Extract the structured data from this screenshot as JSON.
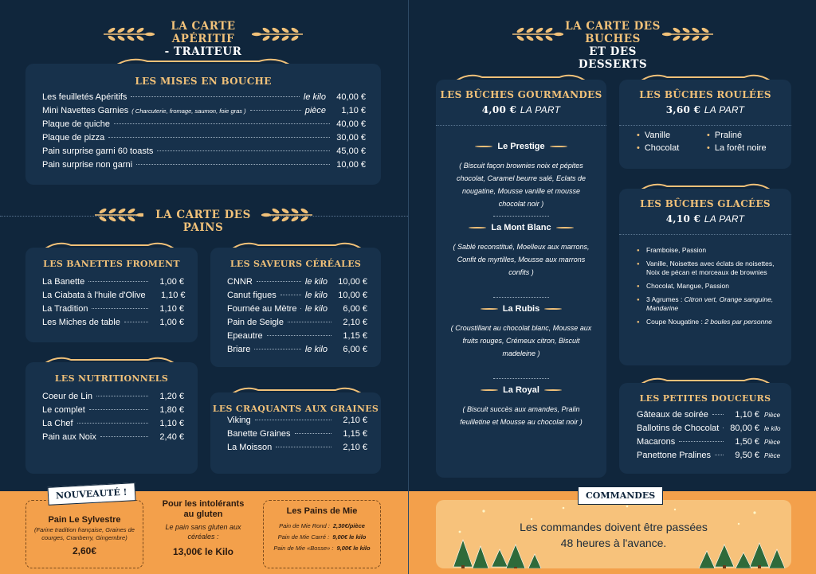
{
  "left": {
    "header": {
      "line1": "LA CARTE APÉRITIF",
      "line2": "- TRAITEUR"
    },
    "mises": {
      "title": "LES MISES EN BOUCHE",
      "rows": [
        {
          "name": "Les feuilletés Apéritifs",
          "note": "",
          "unit": "le kilo",
          "price": "40,00 €"
        },
        {
          "name": "Mini Navettes Garnies",
          "note": "( Charcuterie, fromage, saumon, foie gras )",
          "unit": "pièce",
          "price": "1,10 €"
        },
        {
          "name": "Plaque de quiche",
          "note": "",
          "unit": "",
          "price": "40,00 €"
        },
        {
          "name": "Plaque de pizza",
          "note": "",
          "unit": "",
          "price": "30,00 €"
        },
        {
          "name": "Pain surprise garni 60 toasts",
          "note": "",
          "unit": "",
          "price": "45,00 €"
        },
        {
          "name": "Pain surprise non garni",
          "note": "",
          "unit": "",
          "price": "10,00 €"
        }
      ]
    },
    "pains_header": "LA CARTE DES PAINS",
    "banettes": {
      "title": "LES BANETTES FROMENT",
      "rows": [
        {
          "name": "La Banette",
          "unit": "",
          "price": "1,00 €"
        },
        {
          "name": "La Ciabata à l'huile d'Olive",
          "unit": "",
          "price": "1,10 €"
        },
        {
          "name": "La Tradition",
          "unit": "",
          "price": "1,10 €"
        },
        {
          "name": "Les Miches de table",
          "unit": "",
          "price": "1,00 €"
        }
      ]
    },
    "saveurs": {
      "title": "LES SAVEURS CÉRÉALES",
      "rows": [
        {
          "name": "CNNR",
          "unit": "le kilo",
          "price": "10,00 €"
        },
        {
          "name": "Canut figues",
          "unit": "le kilo",
          "price": "10,00 €"
        },
        {
          "name": "Fournée au Mètre",
          "unit": "le kilo",
          "price": "6,00 €"
        },
        {
          "name": "Pain de Seigle",
          "unit": "",
          "price": "2,10 €"
        },
        {
          "name": "Epeautre",
          "unit": "",
          "price": "1,15 €"
        },
        {
          "name": "Briare",
          "unit": "le kilo",
          "price": "6,00 €"
        }
      ]
    },
    "nutri": {
      "title": "LES NUTRITIONNELS",
      "rows": [
        {
          "name": "Coeur de Lin",
          "unit": "",
          "price": "1,20 €"
        },
        {
          "name": "Le complet",
          "unit": "",
          "price": "1,80 €"
        },
        {
          "name": "La Chef",
          "unit": "",
          "price": "1,10 €"
        },
        {
          "name": "Pain aux Noix",
          "unit": "",
          "price": "2,40 €"
        }
      ]
    },
    "craquants": {
      "title": "LES CRAQUANTS AUX GRAINES",
      "rows": [
        {
          "name": "Viking",
          "unit": "",
          "price": "2,10 €"
        },
        {
          "name": "Banette Graines",
          "unit": "",
          "price": "1,15 €"
        },
        {
          "name": "La Moisson",
          "unit": "",
          "price": "2,10 €"
        }
      ]
    },
    "bottom": {
      "tag": "NOUVEAUTÉ !",
      "sylvestre_title": "Pain Le Sylvestre",
      "sylvestre_desc": "(Farine tradition française, Graines de courges, Cranberry, Gingembre)",
      "sylvestre_price": "2,60€",
      "gluten_title": "Pour les intolérants au gluten",
      "gluten_desc": "Le pain sans gluten aux céréales :",
      "gluten_price": "13,00€ le Kilo",
      "mie_title": "Les Pains de Mie",
      "mie_rows": [
        {
          "name": "Pain de Mie Rond :",
          "price": "2,30€/pièce"
        },
        {
          "name": "Pain de Mie Carré :",
          "price": "9,00€ le kilo"
        },
        {
          "name": "Pain de Mie «Bosse» :",
          "price": "9,00€ le kilo"
        }
      ]
    }
  },
  "right": {
    "header": {
      "line1": "LA CARTE DES BUCHES",
      "line2": "ET DES DESSERTS"
    },
    "gourmandes": {
      "title": "LES BÛCHES GOURMANDES",
      "price": "4,00 €",
      "unit": "LA PART",
      "items": [
        {
          "name": "Le Prestige",
          "desc": "( Biscuit façon brownies noix et pépites chocolat, Caramel beurre salé, Eclats de nougatine, Mousse vanille et mousse chocolat noir )"
        },
        {
          "name": "La Mont Blanc",
          "desc": "( Sablé reconstitué, Moelleux aux marrons, Confit de myrtilles, Mousse aux marrons confits )"
        },
        {
          "name": "La Rubis",
          "desc": "( Croustillant au chocolat blanc, Mousse aux fruits rouges, Crémeux citron, Biscuit madeleine )"
        },
        {
          "name": "La Royal",
          "desc": "( Biscuit succès aux amandes, Pralin feuilletine et Mousse au chocolat noir )"
        }
      ]
    },
    "roulees": {
      "title": "LES BÛCHES ROULÉES",
      "price": "3,60 €",
      "unit": "LA PART",
      "items": [
        "Vanille",
        "Praliné",
        "Chocolat",
        "La forêt noire"
      ]
    },
    "glacees": {
      "title": "LES BÛCHES GLACÉES",
      "price": "4,10 €",
      "unit": "LA PART",
      "items": [
        {
          "text": "Framboise, Passion",
          "ital": ""
        },
        {
          "text": "Vanille, Noisettes avec éclats de noisettes, Noix de pécan et morceaux de brownies",
          "ital": ""
        },
        {
          "text": "Chocolat, Mangue, Passion",
          "ital": ""
        },
        {
          "text": "3 Agrumes : ",
          "ital": "Citron vert, Orange sanguine, Mandarine"
        },
        {
          "text": "Coupe Nougatine : ",
          "ital": "2 boules par personne"
        }
      ]
    },
    "douceurs": {
      "title": "LES PETITES DOUCEURS",
      "rows": [
        {
          "name": "Gâteaux de soirée",
          "price": "1,10 €",
          "unit": "Pièce"
        },
        {
          "name": "Ballotins de Chocolat",
          "price": "80,00 €",
          "unit": "le kilo"
        },
        {
          "name": "Macarons",
          "price": "1,50 €",
          "unit": "Pièce"
        },
        {
          "name": "Panettone Pralines",
          "price": "9,50 €",
          "unit": "Pièce"
        }
      ]
    },
    "commandes": {
      "tag": "COMMANDES",
      "line1": "Les commandes doivent être passées",
      "line2": "48 heures à l'avance."
    }
  }
}
